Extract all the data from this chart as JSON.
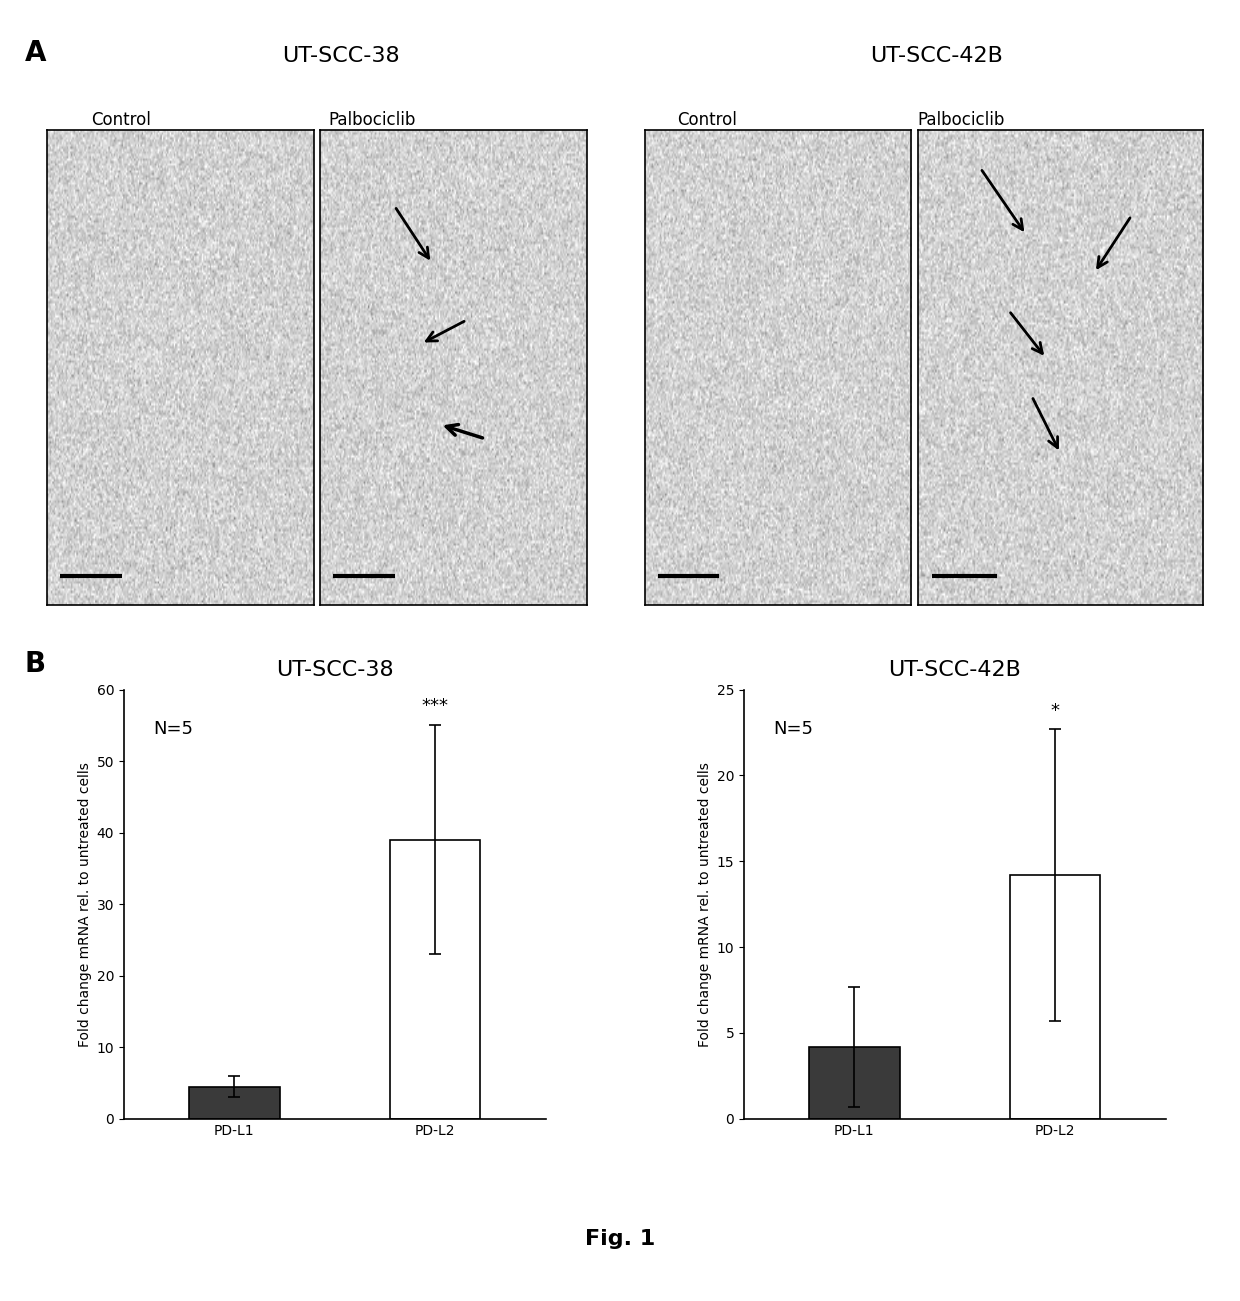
{
  "panel_A_label": "A",
  "panel_B_label": "B",
  "fig_label": "Fig. 1",
  "section_A": {
    "left_group_title": "UT-SCC-38",
    "right_group_title": "UT-SCC-42B",
    "subpanels": [
      "Control",
      "Palbociclib",
      "Control",
      "Palbociclib"
    ]
  },
  "section_B": {
    "left_chart": {
      "title": "UT-SCC-38",
      "ylabel": "Fold change mRNA rel. to untreated cells",
      "categories": [
        "PD-L1",
        "PD-L2"
      ],
      "values": [
        4.5,
        39.0
      ],
      "errors": [
        1.5,
        16.0
      ],
      "bar_colors": [
        "#3a3a3a",
        "#ffffff"
      ],
      "ylim": [
        0,
        60
      ],
      "yticks": [
        0,
        10,
        20,
        30,
        40,
        50,
        60
      ],
      "annotation_pdl2": "***",
      "n_label": "N=5"
    },
    "right_chart": {
      "title": "UT-SCC-42B",
      "ylabel": "Fold change mRNA rel. to untreated cells",
      "categories": [
        "PD-L1",
        "PD-L2"
      ],
      "values": [
        4.2,
        14.2
      ],
      "errors": [
        3.5,
        8.5
      ],
      "bar_colors": [
        "#3a3a3a",
        "#ffffff"
      ],
      "ylim": [
        0,
        25
      ],
      "yticks": [
        0,
        5,
        10,
        15,
        20,
        25
      ],
      "annotation_pdl2": "*",
      "n_label": "N=5"
    }
  },
  "background_color": "#ffffff",
  "bar_edgecolor": "#000000",
  "bar_linewidth": 1.2,
  "bar_width": 0.45,
  "error_capsize": 4,
  "error_linewidth": 1.2,
  "title_fontsize": 16,
  "axis_label_fontsize": 10,
  "tick_fontsize": 10,
  "annotation_fontsize": 13,
  "panel_label_fontsize": 20,
  "sublabel_fontsize": 12,
  "group_label_fontsize": 16,
  "n_label_fontsize": 13,
  "fig_label_fontsize": 16,
  "img_gray_level": 0.82,
  "img_noise_std": 0.08
}
